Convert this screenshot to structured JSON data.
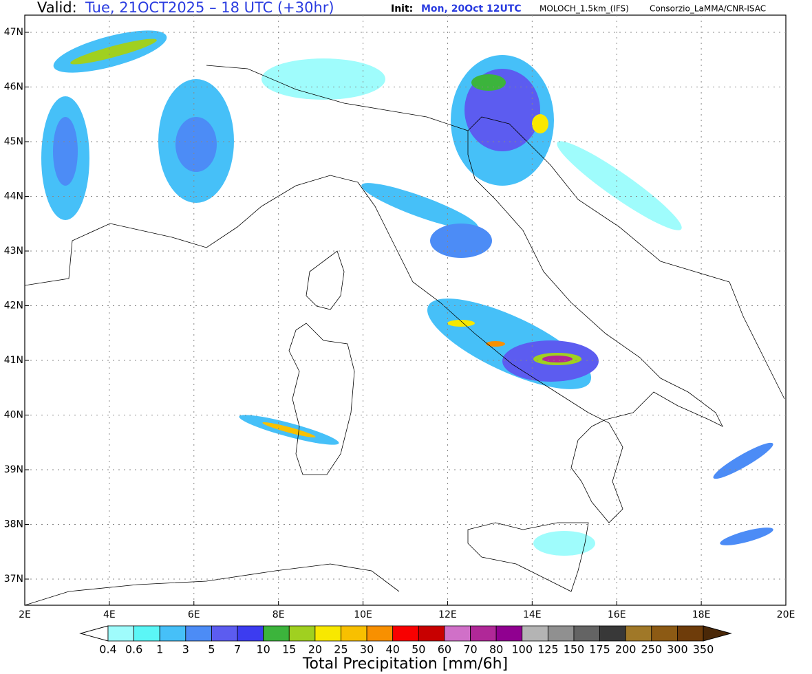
{
  "header": {
    "valid_label": "Valid:",
    "valid_time": "Tue, 21OCT2025 – 18 UTC (+30hr)",
    "init_label": "Init:",
    "init_time": "Mon, 20Oct 12UTC",
    "model": "MOLOCH_1.5km_(IFS)",
    "credit": "Consorzio_LaMMA/CNR-ISAC"
  },
  "map": {
    "lat_labels": [
      "47N",
      "46N",
      "45N",
      "44N",
      "43N",
      "42N",
      "41N",
      "40N",
      "39N",
      "38N",
      "37N"
    ],
    "lon_labels": [
      "2E",
      "4E",
      "6E",
      "8E",
      "10E",
      "12E",
      "14E",
      "16E",
      "18E",
      "20E"
    ]
  },
  "colorbar": {
    "title": "Total Precipitation [mm/6h]",
    "levels": [
      0.4,
      0.6,
      1,
      3,
      5,
      7,
      10,
      15,
      20,
      25,
      30,
      40,
      50,
      60,
      70,
      80,
      100,
      125,
      150,
      175,
      200,
      250,
      300,
      350
    ],
    "colors": [
      "#9ffcfc",
      "#5bf6f6",
      "#46c0f8",
      "#4c8cf6",
      "#5c5cf0",
      "#3c3cf0",
      "#3cb43c",
      "#a0d020",
      "#f8e800",
      "#f8c000",
      "#f89000",
      "#f80000",
      "#c80000",
      "#d070c8",
      "#b02898",
      "#900090",
      "#b4b4b4",
      "#909090",
      "#646464",
      "#383838",
      "#a07828",
      "#8c5a14",
      "#6e3c0a"
    ],
    "low_color": "#ffffff",
    "high_color": "#4a2808"
  }
}
